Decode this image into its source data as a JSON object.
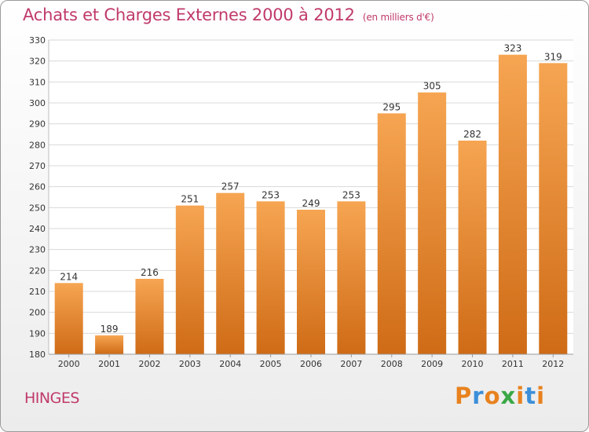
{
  "header": {
    "title": "Achats et Charges Externes 2000 à 2012",
    "subtitle": "(en milliers d'€)"
  },
  "commune": "HINGES",
  "logo": {
    "text": "Proxiti",
    "letter_colors": [
      "#e8821e",
      "#3b8fd9",
      "#e8821e",
      "#3aa845",
      "#e8821e",
      "#3b8fd9",
      "#e8821e"
    ]
  },
  "colors": {
    "bar_top": "#f6a552",
    "bar_bottom": "#cf6b16",
    "grid": "#d9d9d9",
    "axis_text": "#333333",
    "title": "#c03a6a"
  },
  "chart_data": {
    "type": "bar",
    "categories": [
      "2000",
      "2001",
      "2002",
      "2003",
      "2004",
      "2005",
      "2006",
      "2007",
      "2008",
      "2009",
      "2010",
      "2011",
      "2012"
    ],
    "values": [
      214,
      189,
      216,
      251,
      257,
      253,
      249,
      253,
      295,
      305,
      282,
      323,
      319
    ],
    "ylim": [
      180,
      330
    ],
    "yticks": [
      180,
      190,
      200,
      210,
      220,
      230,
      240,
      250,
      260,
      270,
      280,
      290,
      300,
      310,
      320,
      330
    ],
    "grid": true,
    "data_labels": true
  }
}
